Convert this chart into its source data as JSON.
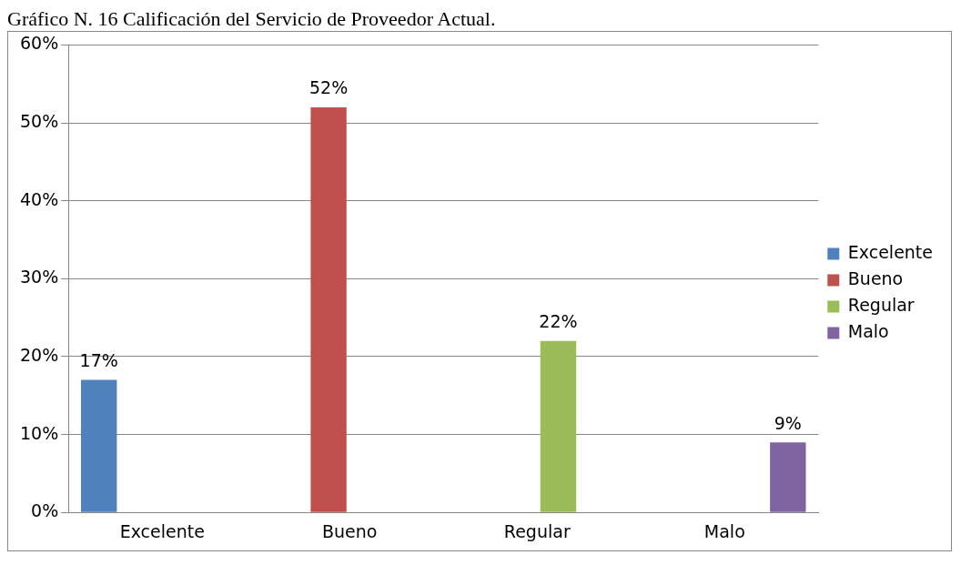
{
  "chart_data": {
    "type": "bar",
    "title": "Gráfico N. 16 Calificación del Servicio de Proveedor Actual.",
    "categories": [
      "Excelente",
      "Bueno",
      "Regular",
      "Malo"
    ],
    "series": [
      {
        "name": "Excelente",
        "color": "#4f81bd",
        "values": [
          17,
          null,
          null,
          null
        ],
        "value_labels": [
          "17%",
          null,
          null,
          null
        ]
      },
      {
        "name": "Bueno",
        "color": "#c0504d",
        "values": [
          null,
          52,
          null,
          null
        ],
        "value_labels": [
          null,
          "52%",
          null,
          null
        ]
      },
      {
        "name": "Regular",
        "color": "#9bbb59",
        "values": [
          null,
          null,
          22,
          null
        ],
        "value_labels": [
          null,
          null,
          "22%",
          null
        ]
      },
      {
        "name": "Malo",
        "color": "#8064a2",
        "values": [
          null,
          null,
          null,
          9
        ],
        "value_labels": [
          null,
          null,
          null,
          "9%"
        ]
      }
    ],
    "ylim": [
      0,
      60
    ],
    "yticks": [
      {
        "value": 0,
        "label": "0%"
      },
      {
        "value": 10,
        "label": "10%"
      },
      {
        "value": 20,
        "label": "20%"
      },
      {
        "value": 30,
        "label": "30%"
      },
      {
        "value": 40,
        "label": "40%"
      },
      {
        "value": 50,
        "label": "50%"
      },
      {
        "value": 60,
        "label": "60%"
      }
    ],
    "grid": "y",
    "legend": "right"
  }
}
